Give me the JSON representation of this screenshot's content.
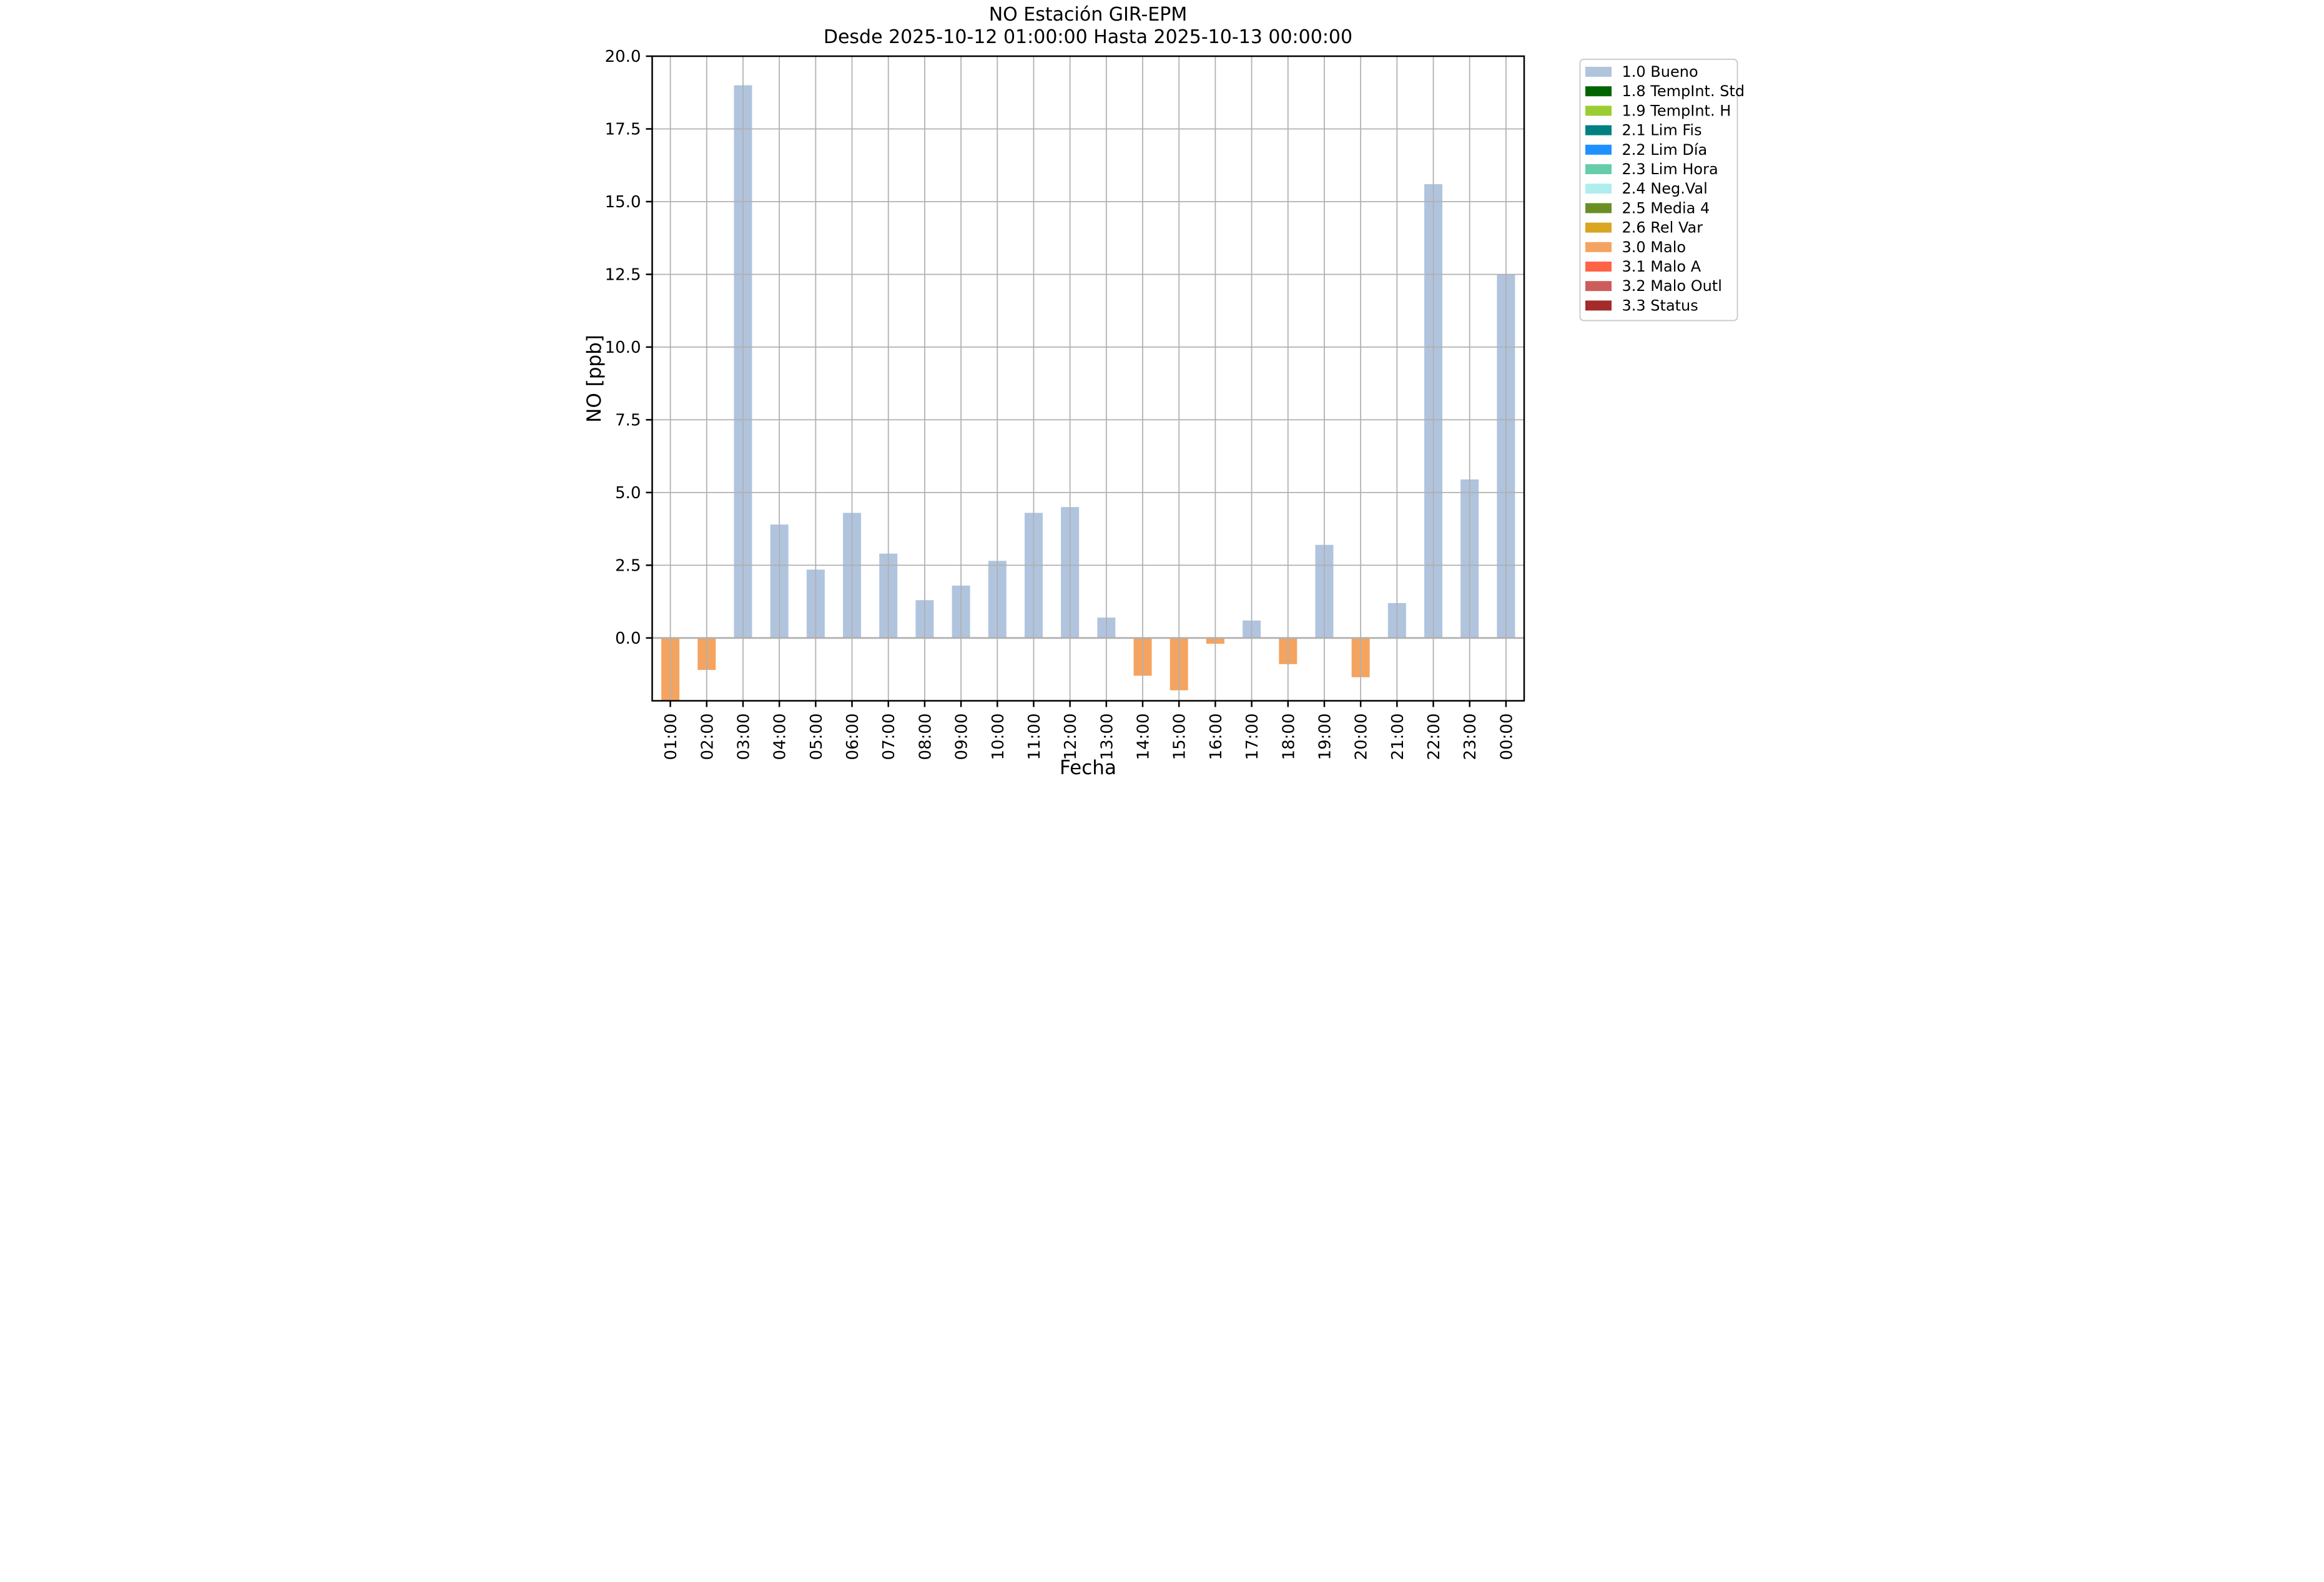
{
  "chart_data": {
    "type": "bar",
    "title": "NO Estación GIR-EPM",
    "subtitle": "Desde 2025-10-12 01:00:00 Hasta 2025-10-13 00:00:00",
    "xlabel": "Fecha",
    "ylabel": "NO [ppb]",
    "ylim": [
      -2.16,
      20.0
    ],
    "yticks": [
      0.0,
      2.5,
      5.0,
      7.5,
      10.0,
      12.5,
      15.0,
      17.5,
      20.0
    ],
    "grid": true,
    "legend_position": "outside upper right",
    "categories": [
      "01:00",
      "02:00",
      "03:00",
      "04:00",
      "05:00",
      "06:00",
      "07:00",
      "08:00",
      "09:00",
      "10:00",
      "11:00",
      "12:00",
      "13:00",
      "14:00",
      "15:00",
      "16:00",
      "17:00",
      "18:00",
      "19:00",
      "20:00",
      "21:00",
      "22:00",
      "23:00",
      "00:00"
    ],
    "series": [
      {
        "name": "NO",
        "values": [
          -2.2,
          -1.1,
          19.0,
          3.9,
          2.35,
          4.3,
          2.9,
          1.3,
          1.8,
          2.65,
          4.3,
          4.5,
          0.7,
          -1.3,
          -1.8,
          -0.2,
          0.6,
          -0.9,
          3.2,
          -1.35,
          1.2,
          15.6,
          5.45,
          12.5
        ],
        "flags": [
          "3.0 Malo",
          "3.0 Malo",
          "1.0 Bueno",
          "1.0 Bueno",
          "1.0 Bueno",
          "1.0 Bueno",
          "1.0 Bueno",
          "1.0 Bueno",
          "1.0 Bueno",
          "1.0 Bueno",
          "1.0 Bueno",
          "1.0 Bueno",
          "1.0 Bueno",
          "3.0 Malo",
          "3.0 Malo",
          "3.0 Malo",
          "1.0 Bueno",
          "3.0 Malo",
          "1.0 Bueno",
          "3.0 Malo",
          "1.0 Bueno",
          "1.0 Bueno",
          "1.0 Bueno",
          "1.0 Bueno"
        ]
      }
    ],
    "notes": "Bar at 01:00 extends below the visible y-range and is clipped at the axis bottom.",
    "legend_entries": [
      {
        "label": "1.0 Bueno",
        "color": "#b0c4de"
      },
      {
        "label": "1.8 TempInt. Std",
        "color": "#006400"
      },
      {
        "label": "1.9 TempInt. H",
        "color": "#9acd32"
      },
      {
        "label": "2.1 Lim Fis",
        "color": "#008080"
      },
      {
        "label": "2.2 Lim Día",
        "color": "#1e90ff"
      },
      {
        "label": "2.3 Lim Hora",
        "color": "#66cdaa"
      },
      {
        "label": "2.4 Neg.Val",
        "color": "#afeeee"
      },
      {
        "label": "2.5 Media 4",
        "color": "#6b8e23"
      },
      {
        "label": "2.6 Rel Var",
        "color": "#daa520"
      },
      {
        "label": "3.0 Malo",
        "color": "#f4a460"
      },
      {
        "label": "3.1 Malo A",
        "color": "#ff6347"
      },
      {
        "label": "3.2 Malo Outl",
        "color": "#cd5c5c"
      },
      {
        "label": "3.3 Status",
        "color": "#a52a2a"
      }
    ],
    "colors": {
      "grid": "#b0b0b0",
      "spine": "#000000",
      "background": "#ffffff",
      "legend_border": "#cccccc"
    }
  }
}
